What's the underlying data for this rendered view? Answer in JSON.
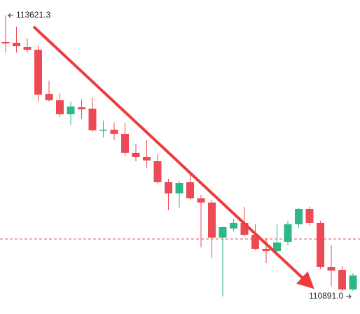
{
  "chart_data": {
    "type": "candlestick",
    "up_color": "#2bb886",
    "down_color": "#ee4a55",
    "ylim": [
      110720.6,
      113771.1
    ],
    "max_label": "113621.3",
    "min_label": "110891.0",
    "price_line": 111449,
    "price_line_color": "#e0555f",
    "candles": [
      {
        "open": 113363,
        "high": 113621.3,
        "low": 113260,
        "close": 113349
      },
      {
        "open": 113356,
        "high": 113512,
        "low": 113260,
        "close": 113322
      },
      {
        "open": 113315,
        "high": 113397,
        "low": 113260,
        "close": 113288
      },
      {
        "open": 113288,
        "high": 113328,
        "low": 112784,
        "close": 112852
      },
      {
        "open": 112859,
        "high": 112988,
        "low": 112784,
        "close": 112797
      },
      {
        "open": 112797,
        "high": 112865,
        "low": 112634,
        "close": 112661
      },
      {
        "open": 112661,
        "high": 112784,
        "low": 112559,
        "close": 112736
      },
      {
        "open": 112729,
        "high": 112804,
        "low": 112614,
        "close": 112709
      },
      {
        "open": 112716,
        "high": 112823,
        "low": 112491,
        "close": 112505
      },
      {
        "open": 112505,
        "high": 112600,
        "low": 112437,
        "close": 112511
      },
      {
        "open": 112511,
        "high": 112580,
        "low": 112409,
        "close": 112471
      },
      {
        "open": 112471,
        "high": 112580,
        "low": 112259,
        "close": 112287
      },
      {
        "open": 112287,
        "high": 112375,
        "low": 112205,
        "close": 112246
      },
      {
        "open": 112246,
        "high": 112409,
        "low": 112137,
        "close": 112212
      },
      {
        "open": 112205,
        "high": 112273,
        "low": 111987,
        "close": 112001
      },
      {
        "open": 112001,
        "high": 112035,
        "low": 111728,
        "close": 111892
      },
      {
        "open": 111892,
        "high": 112014,
        "low": 111755,
        "close": 111994
      },
      {
        "open": 112001,
        "high": 112103,
        "low": 111830,
        "close": 111844
      },
      {
        "open": 111844,
        "high": 111878,
        "low": 111367,
        "close": 111803
      },
      {
        "open": 111803,
        "high": 111830,
        "low": 111265,
        "close": 111463
      },
      {
        "open": 111463,
        "high": 111572,
        "low": 110891.0,
        "close": 111565
      },
      {
        "open": 111551,
        "high": 111640,
        "low": 111524,
        "close": 111606
      },
      {
        "open": 111606,
        "high": 111762,
        "low": 111477,
        "close": 111490
      },
      {
        "open": 111490,
        "high": 111592,
        "low": 111340,
        "close": 111354
      },
      {
        "open": 111354,
        "high": 111456,
        "low": 111218,
        "close": 111333
      },
      {
        "open": 111333,
        "high": 111592,
        "low": 111306,
        "close": 111415
      },
      {
        "open": 111422,
        "high": 111626,
        "low": 111388,
        "close": 111592
      },
      {
        "open": 111592,
        "high": 111749,
        "low": 111558,
        "close": 111742
      },
      {
        "open": 111742,
        "high": 111762,
        "low": 111578,
        "close": 111606
      },
      {
        "open": 111606,
        "high": 111626,
        "low": 111157,
        "close": 111177
      },
      {
        "open": 111177,
        "high": 111388,
        "low": 110993,
        "close": 111143
      },
      {
        "open": 111150,
        "high": 111184,
        "low": 110945,
        "close": 110959
      },
      {
        "open": 110959,
        "high": 111116,
        "low": 110945,
        "close": 111095
      }
    ]
  }
}
